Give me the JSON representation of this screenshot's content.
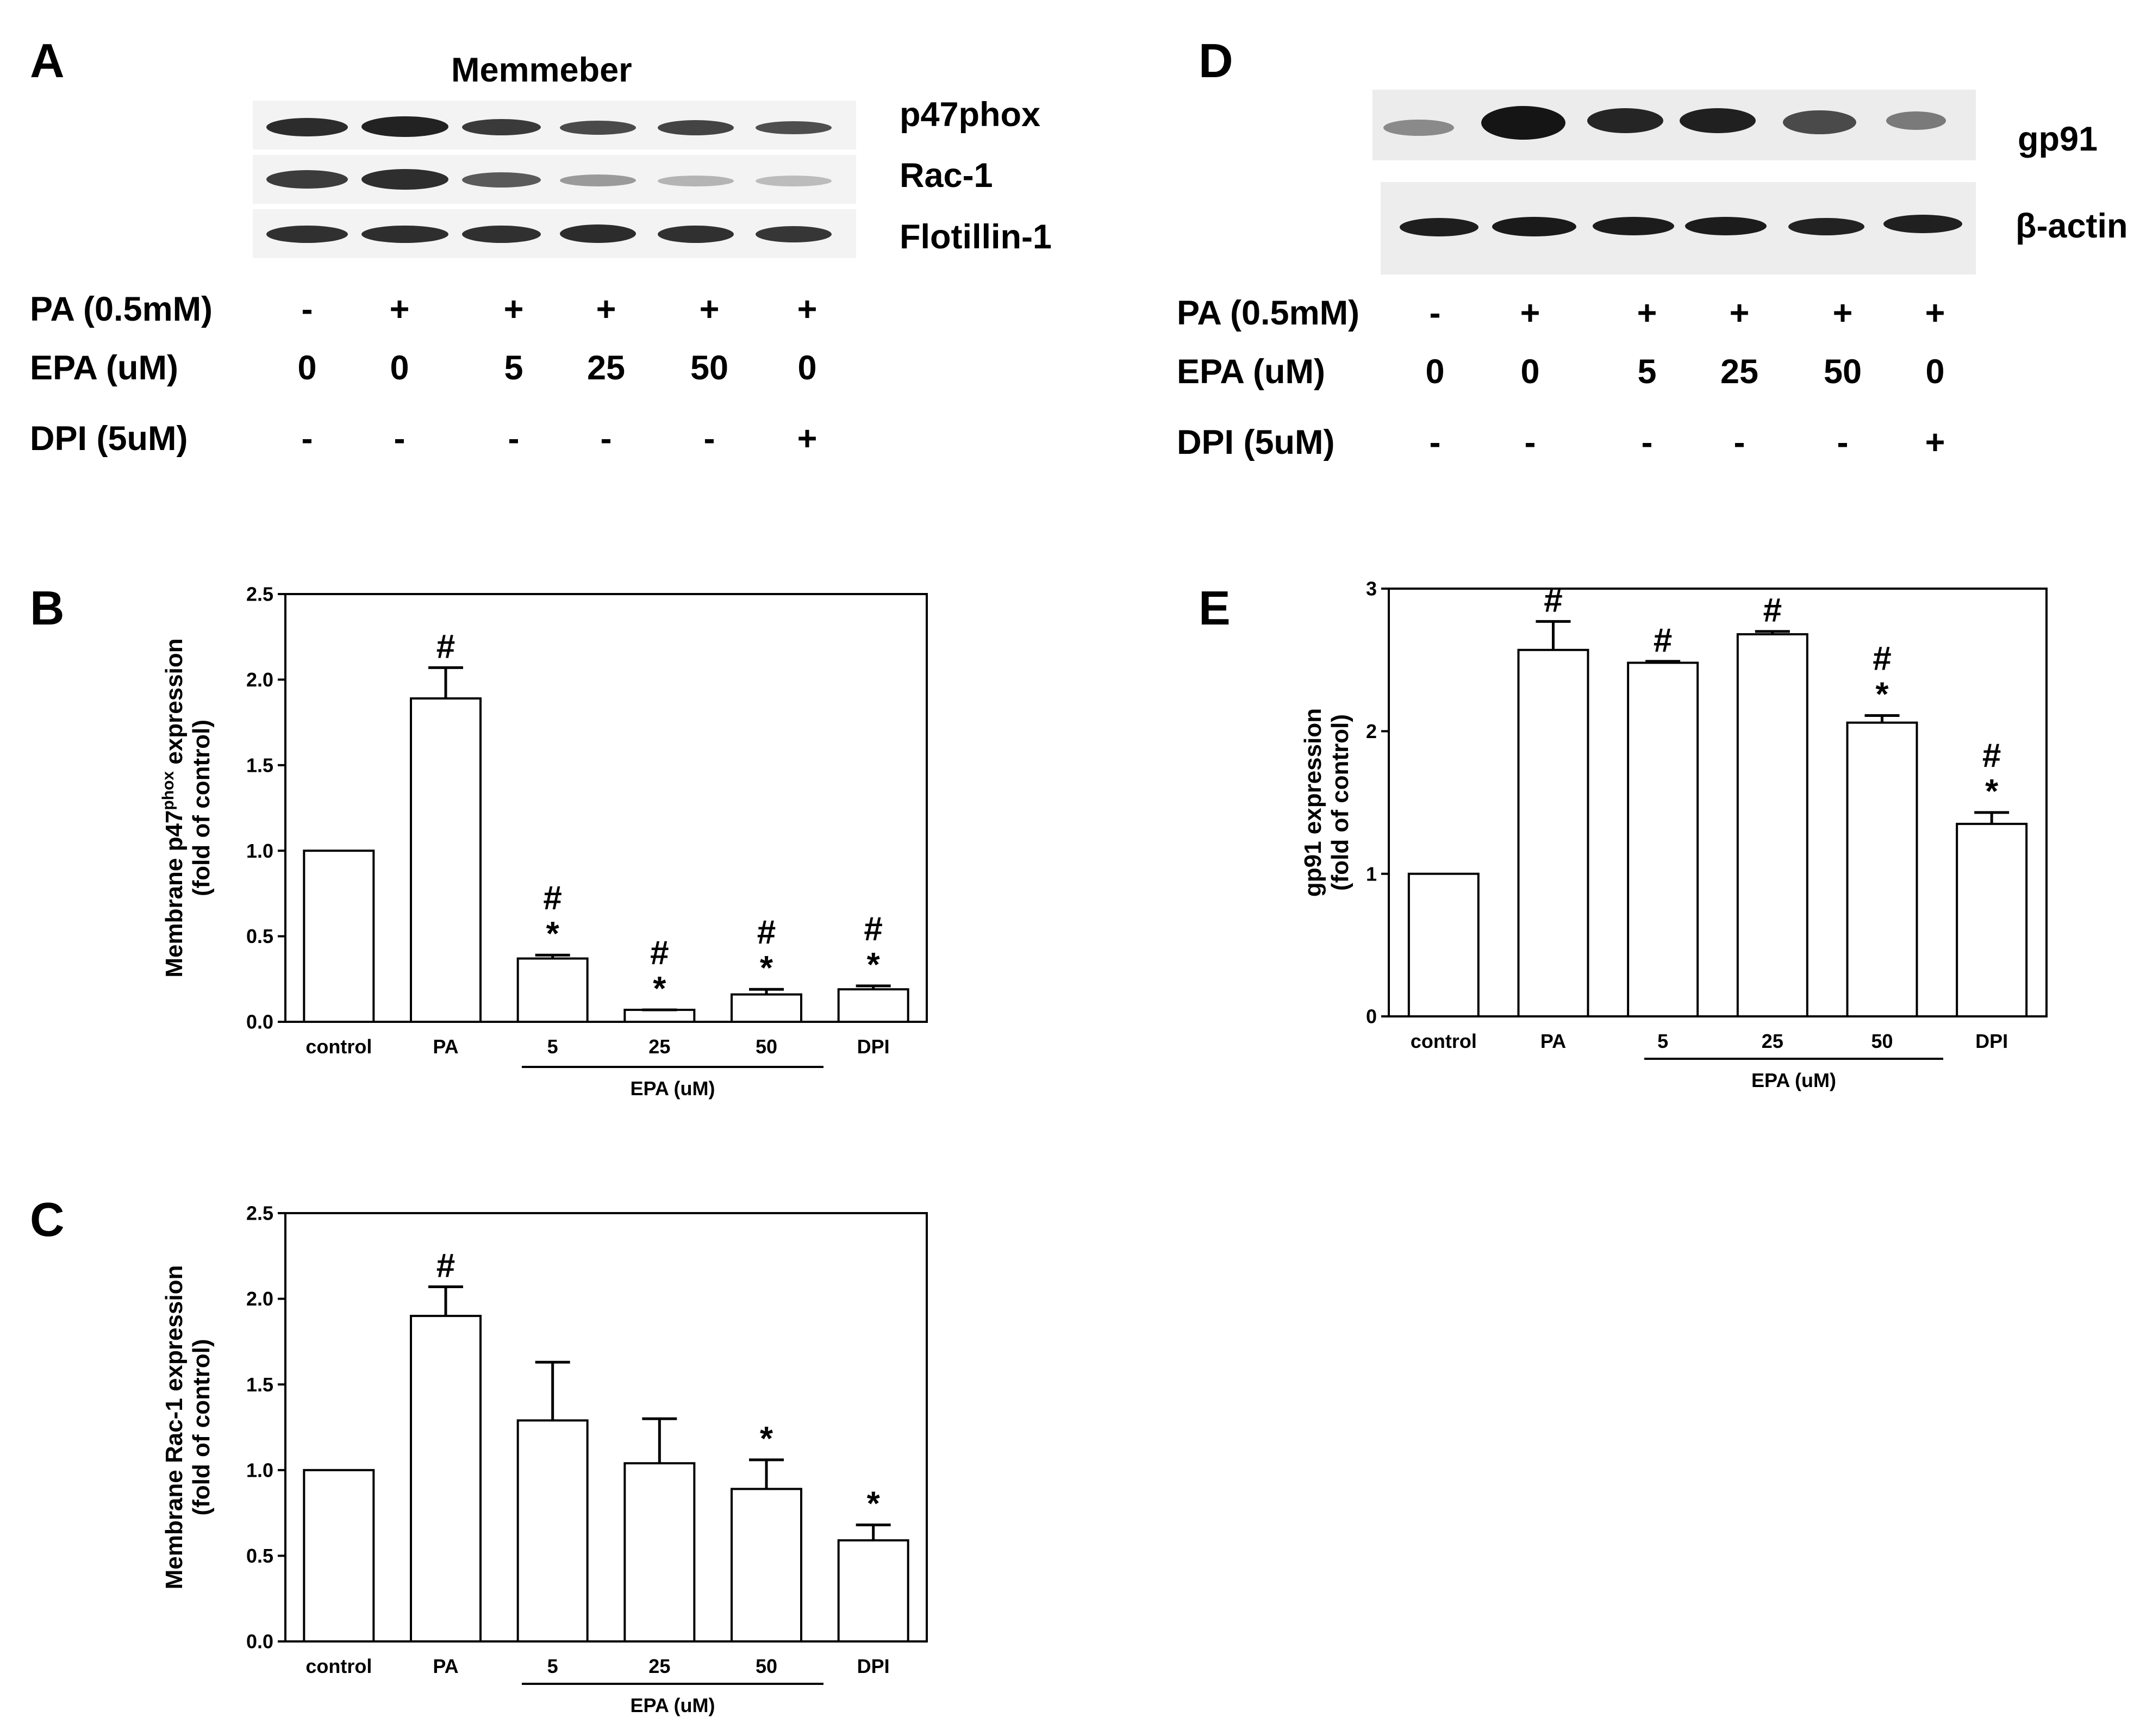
{
  "panels": {
    "A": {
      "label": "A",
      "title": "Memmeber",
      "bands": [
        "p47phox",
        "Rac-1",
        "Flotillin-1"
      ],
      "treatments": [
        {
          "label": "PA (0.5mM)",
          "values": [
            "-",
            "+",
            "+",
            "+",
            "+",
            "+"
          ]
        },
        {
          "label": "EPA (uM)",
          "values": [
            "0",
            "0",
            "5",
            "25",
            "50",
            "0"
          ]
        },
        {
          "label": "DPI  (5uM)",
          "values": [
            "-",
            "-",
            "-",
            "-",
            "-",
            "+"
          ]
        }
      ]
    },
    "D": {
      "label": "D",
      "bands": [
        "gp91",
        "β-actin"
      ],
      "treatments": [
        {
          "label": "PA (0.5mM)",
          "values": [
            "-",
            "+",
            "+",
            "+",
            "+",
            "+"
          ]
        },
        {
          "label": "EPA (uM)",
          "values": [
            "0",
            "0",
            "5",
            "25",
            "50",
            "0"
          ]
        },
        {
          "label": "DPI  (5uM)",
          "values": [
            "-",
            "-",
            "-",
            "-",
            "-",
            "+"
          ]
        }
      ]
    },
    "B": {
      "label": "B"
    },
    "C": {
      "label": "C"
    },
    "E": {
      "label": "E"
    }
  },
  "chart_data": [
    {
      "id": "B",
      "type": "bar",
      "categories": [
        "control",
        "PA",
        "5",
        "25",
        "50",
        "DPI"
      ],
      "values": [
        1.0,
        1.89,
        0.37,
        0.07,
        0.16,
        0.19
      ],
      "errors": [
        0,
        0.18,
        0.02,
        0.0,
        0.03,
        0.02
      ],
      "annotations": [
        "",
        "#",
        "#\n*",
        "#\n*",
        "#\n*",
        "#\n*"
      ],
      "ylabel_main": "Membrane p47",
      "ylabel_sup": "phox",
      "ylabel_rest": " expression",
      "ylabel2": "(fold of control)",
      "xgroup_label": "EPA (uM)",
      "ylim": [
        0,
        2.5
      ],
      "yticks": [
        "0.0",
        "0.5",
        "1.0",
        "1.5",
        "2.0",
        "2.5"
      ]
    },
    {
      "id": "C",
      "type": "bar",
      "categories": [
        "control",
        "PA",
        "5",
        "25",
        "50",
        "DPI"
      ],
      "values": [
        1.0,
        1.9,
        1.29,
        1.04,
        0.89,
        0.59
      ],
      "errors": [
        0,
        0.17,
        0.34,
        0.26,
        0.17,
        0.09
      ],
      "annotations": [
        "",
        "#",
        "",
        "",
        "*",
        "*"
      ],
      "ylabel_main": "Membrane Rac-1 expression",
      "ylabel_sup": "",
      "ylabel_rest": "",
      "ylabel2": "(fold of control)",
      "xgroup_label": "EPA (uM)",
      "ylim": [
        0,
        2.5
      ],
      "yticks": [
        "0.0",
        "0.5",
        "1.0",
        "1.5",
        "2.0",
        "2.5"
      ]
    },
    {
      "id": "E",
      "type": "bar",
      "categories": [
        "control",
        "PA",
        "5",
        "25",
        "50",
        "DPI"
      ],
      "values": [
        1.0,
        2.57,
        2.48,
        2.68,
        2.06,
        1.35
      ],
      "errors": [
        0,
        0.2,
        0.01,
        0.02,
        0.05,
        0.08
      ],
      "annotations": [
        "",
        "#",
        "#",
        "#",
        "#\n*",
        "#\n*"
      ],
      "ylabel_main": "gp91 expression",
      "ylabel_sup": "",
      "ylabel_rest": "",
      "ylabel2": "(fold of control)",
      "xgroup_label": "EPA (uM)",
      "ylim": [
        0,
        3
      ],
      "yticks": [
        "0",
        "1",
        "2",
        "3"
      ]
    }
  ]
}
